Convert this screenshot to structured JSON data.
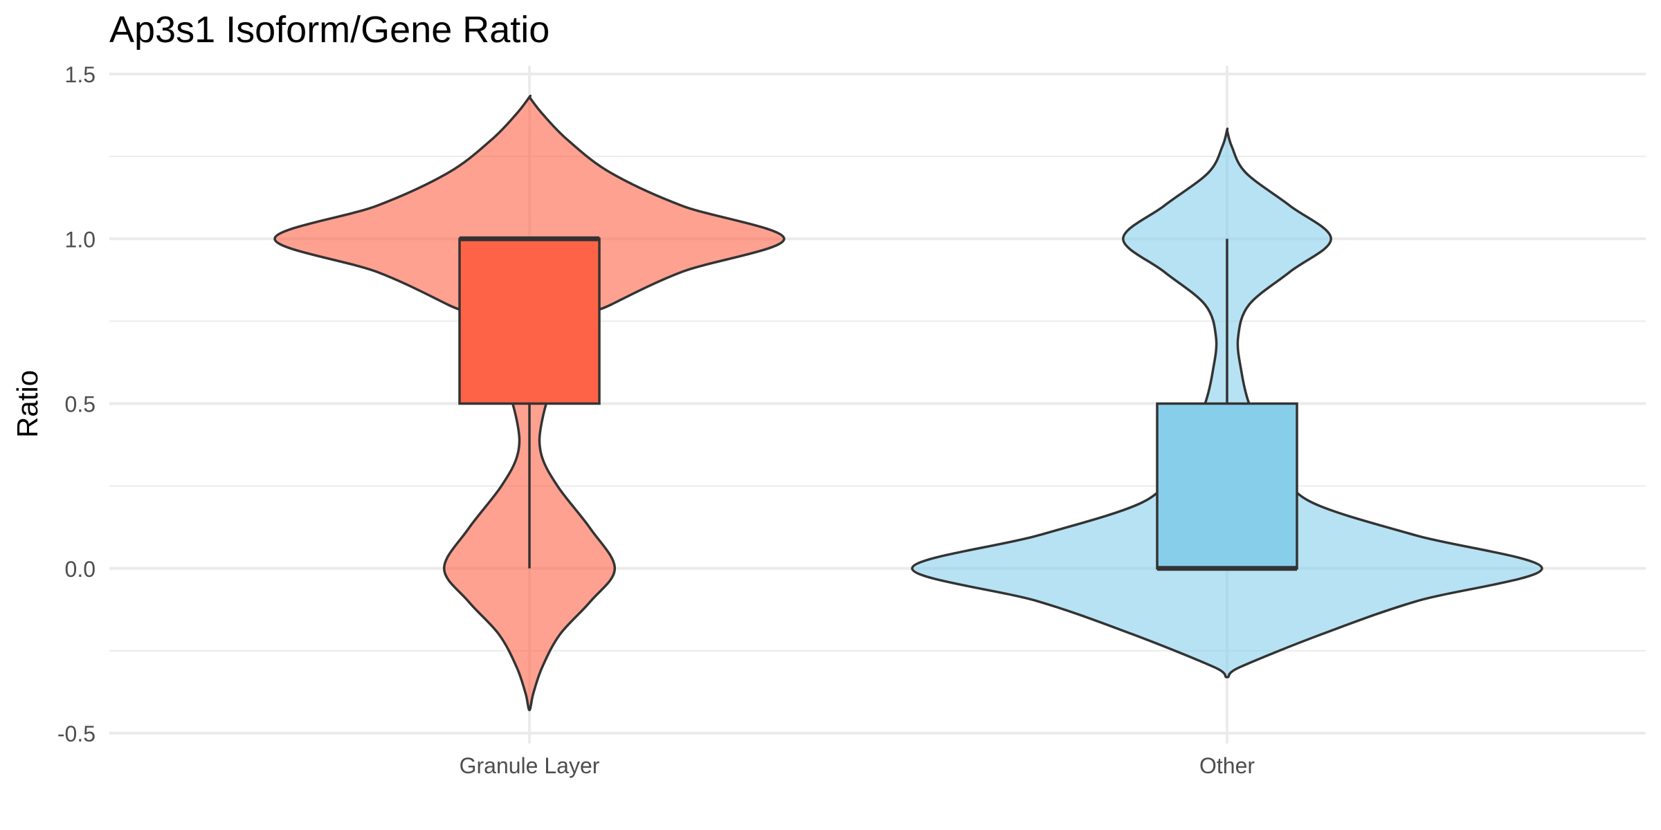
{
  "chart_data": {
    "type": "violin",
    "title": "Ap3s1 Isoform/Gene Ratio",
    "xlabel": "",
    "ylabel": "Ratio",
    "ylim": [
      -0.5,
      1.5
    ],
    "y_ticks": [
      -0.5,
      0.0,
      0.5,
      1.0,
      1.5
    ],
    "y_tick_labels": [
      "-0.5",
      "0.0",
      "0.5",
      "1.0",
      "1.5"
    ],
    "grid": true,
    "legend": "none",
    "categories": [
      "Granule Layer",
      "Other"
    ],
    "series": [
      {
        "category": "Granule Layer",
        "fill": "#FF6347",
        "violin_fill_opacity": 0.6,
        "box": {
          "q1": 0.5,
          "median": 1.0,
          "q3": 1.0,
          "whisker_low": 0.0,
          "whisker_high": 1.0
        },
        "density": [
          {
            "y": 1.43,
            "w": 0.0
          },
          {
            "y": 1.38,
            "w": 0.05
          },
          {
            "y": 1.3,
            "w": 0.15
          },
          {
            "y": 1.2,
            "w": 0.32
          },
          {
            "y": 1.1,
            "w": 0.6
          },
          {
            "y": 1.0,
            "w": 1.0
          },
          {
            "y": 0.9,
            "w": 0.6
          },
          {
            "y": 0.8,
            "w": 0.32
          },
          {
            "y": 0.75,
            "w": 0.2
          },
          {
            "y": 0.6,
            "w": 0.11
          },
          {
            "y": 0.45,
            "w": 0.05
          },
          {
            "y": 0.35,
            "w": 0.045
          },
          {
            "y": 0.25,
            "w": 0.11
          },
          {
            "y": 0.12,
            "w": 0.24
          },
          {
            "y": 0.0,
            "w": 0.335
          },
          {
            "y": -0.1,
            "w": 0.24
          },
          {
            "y": -0.2,
            "w": 0.12
          },
          {
            "y": -0.3,
            "w": 0.05
          },
          {
            "y": -0.38,
            "w": 0.015
          },
          {
            "y": -0.43,
            "w": 0.0
          }
        ]
      },
      {
        "category": "Other",
        "fill": "#87CEEB",
        "violin_fill_opacity": 0.6,
        "box": {
          "q1": 0.0,
          "median": 0.0,
          "q3": 0.5,
          "whisker_low": 0.0,
          "whisker_high": 1.0
        },
        "density": [
          {
            "y": 1.33,
            "w": 0.0
          },
          {
            "y": 1.28,
            "w": 0.015
          },
          {
            "y": 1.2,
            "w": 0.06
          },
          {
            "y": 1.1,
            "w": 0.2
          },
          {
            "y": 1.0,
            "w": 0.33
          },
          {
            "y": 0.9,
            "w": 0.2
          },
          {
            "y": 0.8,
            "w": 0.07
          },
          {
            "y": 0.7,
            "w": 0.035
          },
          {
            "y": 0.6,
            "w": 0.045
          },
          {
            "y": 0.5,
            "w": 0.07
          },
          {
            "y": 0.4,
            "w": 0.12
          },
          {
            "y": 0.3,
            "w": 0.17
          },
          {
            "y": 0.2,
            "w": 0.27
          },
          {
            "y": 0.1,
            "w": 0.6
          },
          {
            "y": 0.0,
            "w": 1.0
          },
          {
            "y": -0.1,
            "w": 0.6
          },
          {
            "y": -0.2,
            "w": 0.3
          },
          {
            "y": -0.3,
            "w": 0.04
          },
          {
            "y": -0.33,
            "w": 0.0
          }
        ]
      }
    ],
    "colors": {
      "outline": "#333333",
      "grid": "#EBEBEB",
      "tick_text": "#4D4D4D"
    }
  }
}
